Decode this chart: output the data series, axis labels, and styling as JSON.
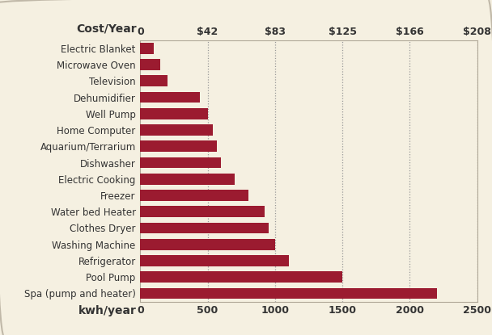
{
  "categories": [
    "Spa (pump and heater)",
    "Pool Pump",
    "Refrigerator",
    "Washing Machine",
    "Clothes Dryer",
    "Water bed Heater",
    "Freezer",
    "Electric Cooking",
    "Dishwasher",
    "Aquarium/Terrarium",
    "Home Computer",
    "Well Pump",
    "Dehumidifier",
    "Television",
    "Microwave Oven",
    "Electric Blanket"
  ],
  "values": [
    2200,
    1500,
    1100,
    1000,
    950,
    920,
    800,
    700,
    600,
    570,
    540,
    500,
    440,
    200,
    150,
    100
  ],
  "bar_color": "#9B1B30",
  "background_color": "#F5F0E1",
  "border_color": "#C8C0A8",
  "text_color": "#333333",
  "grid_color": "#999999",
  "title_top": "Cost/Year",
  "title_bottom": "kwh/year",
  "xlim": [
    0,
    2500
  ],
  "xticks_kwh": [
    0,
    500,
    1000,
    1500,
    2000,
    2500
  ],
  "cost_labels": [
    "0",
    "$42",
    "$83",
    "$125",
    "$166",
    "$208"
  ],
  "cost_positions": [
    0,
    500,
    1000,
    1500,
    2000,
    2500
  ],
  "grid_positions": [
    500,
    1000,
    1500,
    2000,
    2500
  ],
  "label_fontsize": 8.5,
  "tick_fontsize": 9,
  "header_fontsize": 10
}
